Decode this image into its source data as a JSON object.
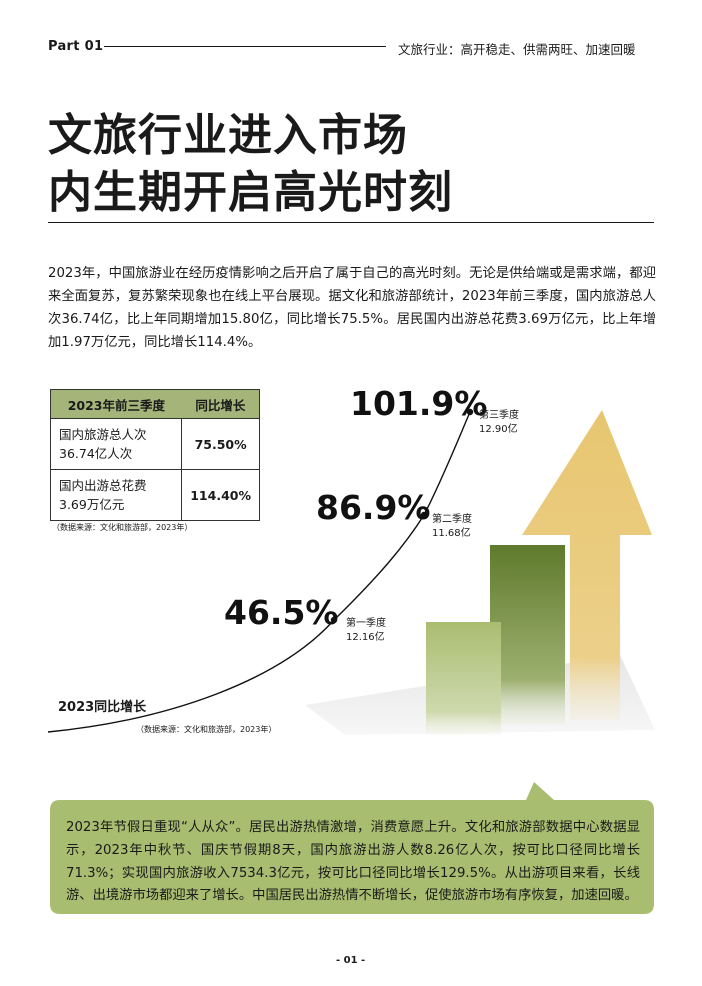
{
  "header": {
    "part": "Part 01",
    "subtitle": "文旅行业：高开稳走、供需两旺、加速回暖"
  },
  "title": {
    "line1": "文旅行业进入市场",
    "line2": "内生期开启高光时刻"
  },
  "intro": "2023年，中国旅游业在经历疫情影响之后开启了属于自己的高光时刻。无论是供给端或是需求端，都迎来全面复苏，复苏繁荣现象也在线上平台展现。据文化和旅游部统计，2023年前三季度，国内旅游总人次36.74亿，比上年同期增加15.80亿，同比增长75.5%。居民国内出游总花费3.69万亿元，比上年增加1.97万亿元，同比增长114.4%。",
  "table": {
    "headers": [
      "2023年前三季度",
      "同比增长"
    ],
    "rows": [
      {
        "label_line1": "国内旅游总人次",
        "label_line2": "36.74亿人次",
        "value": "75.50%"
      },
      {
        "label_line1": "国内出游总花费",
        "label_line2": "3.69万亿元",
        "value": "114.40%"
      }
    ],
    "source": "（数据来源：文化和旅游部，2023年）"
  },
  "chart_data": {
    "type": "line",
    "title": "2023同比增长",
    "series": [
      {
        "categories": [
          "第一季度",
          "第二季度",
          "第三季度"
        ],
        "values": [
          46.5,
          86.9,
          101.9
        ],
        "value_labels": [
          "46.5%",
          "86.9%",
          "101.9%"
        ],
        "point_notes": [
          "12.16亿",
          "11.68亿",
          "12.90亿"
        ]
      }
    ],
    "source": "（数据来源：文化和旅游部，2023年）",
    "colors": {
      "arrow": "#e8c670",
      "bar_dark": "#5f7a2c",
      "bar_light": "#a9bd70",
      "curve": "#111111"
    }
  },
  "bubble": {
    "text": "2023年节假日重现“人从众”。居民出游热情激增，消费意愿上升。文化和旅游部数据中心数据显示，2023年中秋节、国庆节假期8天，国内旅游出游人数8.26亿人次，按可比口径同比增长71.3%；实现国内旅游收入7534.3亿元，按可比口径同比增长129.5%。从出游项目来看，长线游、出境游市场都迎来了增长。中国居民出游热情不断增长，促使旅游市场有序恢复，加速回暖。",
    "color": "#a9bd70"
  },
  "page_number": "- 01 -"
}
